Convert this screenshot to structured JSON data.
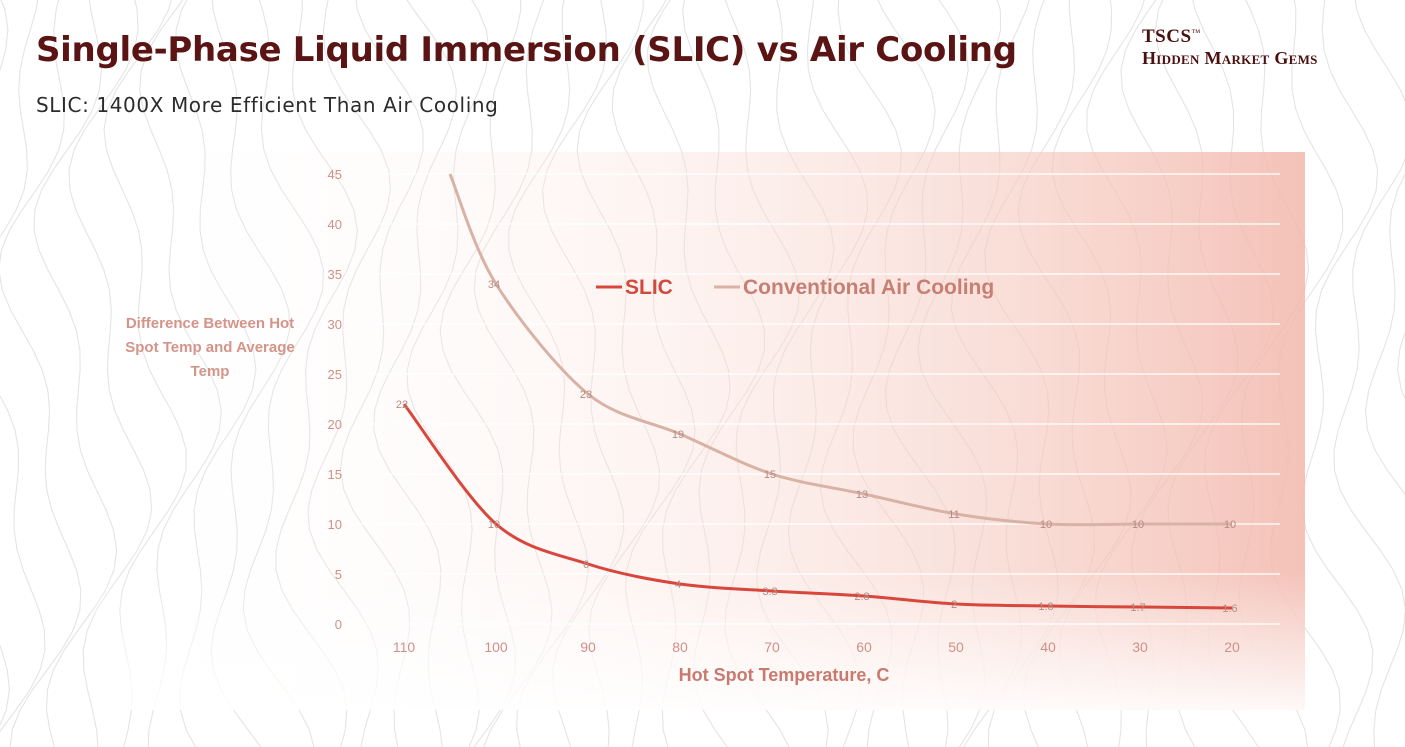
{
  "header": {
    "title": "Single-Phase Liquid Immersion (SLIC) vs Air Cooling",
    "subtitle": "SLIC: 1400X More Efficient Than Air Cooling",
    "brand_top": "TSCS",
    "brand_tm": "™",
    "brand_bottom": "Hidden Market Gems"
  },
  "colors": {
    "title": "#5b1414",
    "slic": "#d9463b",
    "air": "#d9b2a6",
    "axis_text": "#d09088",
    "panel": "#f4c3b9"
  },
  "chart_data": {
    "type": "line",
    "title": "",
    "xlabel": "Hot Spot Temperature, C",
    "ylabel": "Difference Between Hot Spot Temp and Average Temp",
    "ylabel_lines": [
      "Difference Between Hot",
      "Spot Temp and Average",
      "Temp"
    ],
    "categories": [
      "110",
      "100",
      "90",
      "80",
      "70",
      "60",
      "50",
      "40",
      "30",
      "20"
    ],
    "ylim": [
      0,
      45
    ],
    "yticks": [
      "0",
      "5",
      "10",
      "15",
      "20",
      "25",
      "30",
      "35",
      "40",
      "45"
    ],
    "grid": true,
    "legend_position": "top-center",
    "series": [
      {
        "name": "SLIC",
        "values": [
          22,
          10,
          6,
          4,
          3.3,
          2.8,
          2,
          1.8,
          1.7,
          1.6
        ],
        "labels": [
          "22",
          "10",
          "6",
          "4",
          "3.3",
          "2.8",
          "2",
          "1.8",
          "1.7",
          "1.6"
        ]
      },
      {
        "name": "Conventional Air Cooling",
        "values": [
          45,
          34,
          23,
          19,
          15,
          13,
          11,
          10,
          10,
          10
        ],
        "x_start_index": 0.5,
        "labels": [
          "",
          "34",
          "23",
          "19",
          "15",
          "13",
          "11",
          "10",
          "10",
          "10"
        ]
      }
    ]
  }
}
